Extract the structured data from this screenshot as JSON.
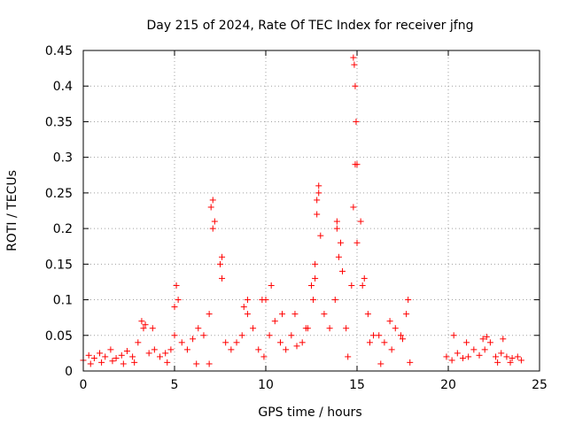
{
  "chart_data": {
    "type": "scatter",
    "title": "Day 215 of 2024, Rate Of TEC Index for receiver jfng",
    "xlabel": "GPS time / hours",
    "ylabel": "ROTI / TECUs",
    "xlim": [
      0,
      25
    ],
    "ylim": [
      0,
      0.45
    ],
    "xticks": [
      "0",
      "5",
      "10",
      "15",
      "20",
      "25"
    ],
    "xtick_values": [
      0,
      5,
      10,
      15,
      20,
      25
    ],
    "yticks": [
      "0",
      "0.05",
      "0.1",
      "0.15",
      "0.2",
      "0.25",
      "0.3",
      "0.35",
      "0.4",
      "0.45"
    ],
    "ytick_values": [
      0,
      0.05,
      0.1,
      0.15,
      0.2,
      0.25,
      0.3,
      0.35,
      0.4,
      0.45
    ],
    "grid": true,
    "marker": "+",
    "color": "#ff0000",
    "series": [
      {
        "name": "ROTI",
        "x": [
          0.0,
          0.3,
          0.6,
          0.9,
          1.2,
          1.5,
          1.8,
          2.1,
          2.4,
          2.7,
          3.0,
          3.3,
          3.6,
          3.9,
          4.2,
          4.5,
          4.8,
          5.0,
          5.1,
          5.4,
          5.7,
          6.0,
          6.3,
          6.6,
          6.9,
          7.1,
          7.2,
          7.5,
          7.8,
          8.1,
          8.4,
          8.7,
          9.0,
          9.3,
          9.6,
          9.9,
          10.2,
          10.5,
          10.8,
          11.1,
          11.4,
          11.7,
          12.0,
          12.3,
          12.6,
          12.7,
          12.8,
          12.9,
          13.2,
          13.5,
          13.8,
          13.9,
          14.1,
          14.4,
          14.7,
          14.8,
          14.9,
          15.0,
          15.3,
          15.6,
          15.9,
          16.2,
          16.5,
          16.8,
          17.1,
          17.4,
          17.7,
          17.8,
          19.9,
          20.2,
          20.5,
          20.8,
          21.1,
          21.4,
          21.7,
          22.0,
          22.3,
          22.6,
          22.9,
          23.2,
          23.5,
          23.8,
          24.0,
          0.4,
          1.0,
          1.6,
          2.2,
          2.8,
          3.2,
          3.4,
          3.8,
          4.6,
          5.0,
          5.2,
          6.2,
          6.9,
          7.0,
          7.1,
          7.6,
          7.6,
          8.8,
          9.0,
          9.8,
          10.0,
          10.3,
          10.9,
          11.6,
          12.2,
          12.5,
          12.7,
          12.8,
          12.9,
          13.0,
          13.9,
          14.0,
          14.2,
          14.5,
          14.8,
          14.85,
          14.9,
          14.95,
          15.0,
          15.2,
          15.4,
          15.7,
          16.3,
          16.9,
          17.5,
          17.9,
          20.3,
          21.0,
          21.9,
          22.1,
          22.7,
          23.0,
          23.4
        ],
        "y": [
          0.015,
          0.022,
          0.018,
          0.025,
          0.02,
          0.03,
          0.018,
          0.022,
          0.028,
          0.02,
          0.04,
          0.06,
          0.025,
          0.03,
          0.02,
          0.025,
          0.03,
          0.05,
          0.12,
          0.04,
          0.03,
          0.045,
          0.06,
          0.05,
          0.08,
          0.24,
          0.21,
          0.15,
          0.04,
          0.03,
          0.04,
          0.05,
          0.08,
          0.06,
          0.03,
          0.02,
          0.05,
          0.07,
          0.04,
          0.03,
          0.05,
          0.035,
          0.04,
          0.06,
          0.1,
          0.15,
          0.22,
          0.25,
          0.08,
          0.06,
          0.1,
          0.2,
          0.18,
          0.06,
          0.12,
          0.23,
          0.29,
          0.18,
          0.12,
          0.08,
          0.05,
          0.05,
          0.04,
          0.07,
          0.06,
          0.05,
          0.08,
          0.1,
          0.02,
          0.015,
          0.025,
          0.018,
          0.02,
          0.03,
          0.022,
          0.03,
          0.04,
          0.02,
          0.025,
          0.02,
          0.018,
          0.02,
          0.015,
          0.01,
          0.012,
          0.014,
          0.01,
          0.012,
          0.07,
          0.065,
          0.06,
          0.012,
          0.09,
          0.1,
          0.01,
          0.01,
          0.23,
          0.2,
          0.16,
          0.13,
          0.09,
          0.1,
          0.1,
          0.1,
          0.12,
          0.08,
          0.08,
          0.06,
          0.12,
          0.13,
          0.24,
          0.26,
          0.19,
          0.21,
          0.16,
          0.14,
          0.02,
          0.44,
          0.43,
          0.4,
          0.35,
          0.29,
          0.21,
          0.13,
          0.04,
          0.01,
          0.03,
          0.045,
          0.012,
          0.05,
          0.04,
          0.045,
          0.048,
          0.012,
          0.045,
          0.012
        ]
      }
    ]
  }
}
